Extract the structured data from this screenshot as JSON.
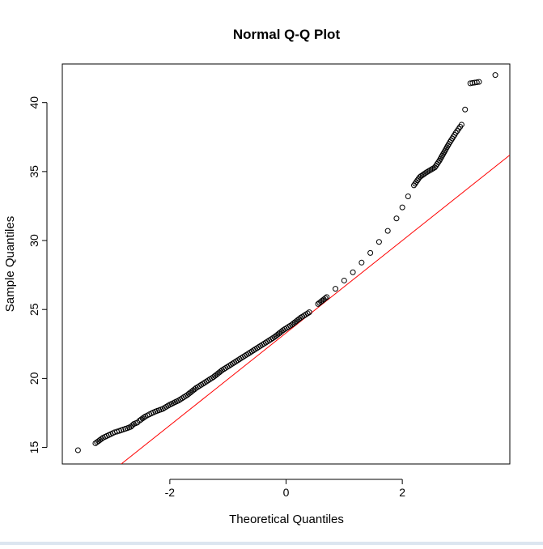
{
  "chart_data": {
    "type": "scatter",
    "title": "Normal Q-Q Plot",
    "xlabel": "Theoretical Quantiles",
    "ylabel": "Sample Quantiles",
    "xlim": [
      -3.85,
      3.85
    ],
    "ylim": [
      13.8,
      42.8
    ],
    "xticks": [
      -2,
      0,
      2
    ],
    "xtick_labels": [
      "-2",
      "0",
      "2"
    ],
    "yticks": [
      15,
      20,
      25,
      30,
      35,
      40
    ],
    "ytick_labels": [
      "15",
      "20",
      "25",
      "30",
      "35",
      "40"
    ],
    "grid": false,
    "legend": "none",
    "reference_line": {
      "slope": 3.35,
      "intercept": 23.3,
      "color": "#ff0000"
    },
    "points": {
      "x": [
        -3.58,
        -3.28,
        -3.15,
        -3.05,
        -2.95,
        -2.87,
        -2.8,
        -2.73,
        -2.67,
        -2.62,
        -2.56,
        -2.52,
        -2.47,
        -2.42,
        -2.35,
        -2.25,
        -2.12,
        -2.0,
        -1.85,
        -1.7,
        -1.55,
        -1.4,
        -1.25,
        -1.1,
        -0.95,
        -0.8,
        -0.65,
        -0.5,
        -0.35,
        -0.2,
        -0.05,
        0.1,
        0.25,
        0.4,
        0.55,
        0.7,
        0.85,
        1.0,
        1.15,
        1.3,
        1.45,
        1.6,
        1.75,
        1.9,
        2.0,
        2.1,
        2.2,
        2.3,
        2.4,
        2.48,
        2.56,
        2.64,
        2.72,
        2.8,
        2.86,
        2.92,
        2.97,
        3.02,
        3.08,
        3.17,
        3.32,
        3.6
      ],
      "y": [
        14.8,
        15.3,
        15.7,
        15.9,
        16.1,
        16.2,
        16.3,
        16.4,
        16.5,
        16.7,
        16.8,
        16.95,
        17.1,
        17.25,
        17.4,
        17.6,
        17.8,
        18.1,
        18.4,
        18.8,
        19.3,
        19.7,
        20.1,
        20.6,
        21.0,
        21.4,
        21.8,
        22.2,
        22.6,
        23.0,
        23.5,
        23.9,
        24.4,
        24.8,
        25.4,
        25.9,
        26.5,
        27.1,
        27.7,
        28.4,
        29.1,
        29.9,
        30.7,
        31.6,
        32.4,
        33.2,
        34.0,
        34.6,
        34.9,
        35.1,
        35.3,
        35.8,
        36.4,
        37.0,
        37.4,
        37.8,
        38.1,
        38.4,
        39.5,
        41.4,
        41.5,
        42.0
      ]
    }
  }
}
